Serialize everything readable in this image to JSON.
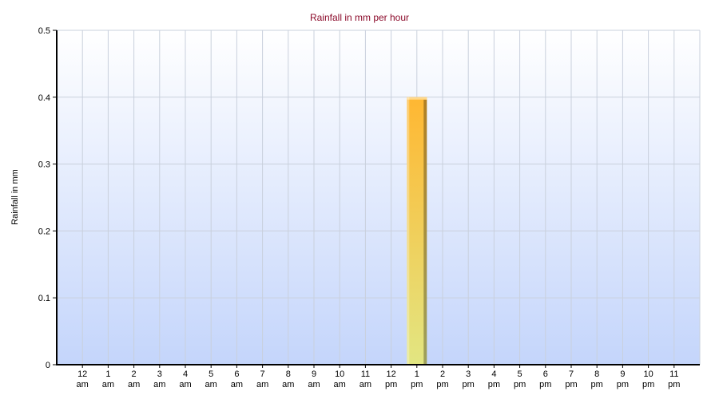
{
  "chart_data": {
    "type": "bar",
    "title": "Rainfall in mm per hour",
    "xlabel": "",
    "ylabel": "Rainfall in mm",
    "categories": [
      [
        "12",
        "am"
      ],
      [
        "1",
        "am"
      ],
      [
        "2",
        "am"
      ],
      [
        "3",
        "am"
      ],
      [
        "4",
        "am"
      ],
      [
        "5",
        "am"
      ],
      [
        "6",
        "am"
      ],
      [
        "7",
        "am"
      ],
      [
        "8",
        "am"
      ],
      [
        "9",
        "am"
      ],
      [
        "10",
        "am"
      ],
      [
        "11",
        "am"
      ],
      [
        "12",
        "pm"
      ],
      [
        "1",
        "pm"
      ],
      [
        "2",
        "pm"
      ],
      [
        "3",
        "pm"
      ],
      [
        "4",
        "pm"
      ],
      [
        "5",
        "pm"
      ],
      [
        "6",
        "pm"
      ],
      [
        "7",
        "pm"
      ],
      [
        "8",
        "pm"
      ],
      [
        "9",
        "pm"
      ],
      [
        "10",
        "pm"
      ],
      [
        "11",
        "pm"
      ]
    ],
    "values": [
      0,
      0,
      0,
      0,
      0,
      0,
      0,
      0,
      0,
      0,
      0,
      0,
      0,
      0.4,
      0,
      0,
      0,
      0,
      0,
      0,
      0,
      0,
      0,
      0
    ],
    "ylim": [
      0,
      0.5
    ],
    "yticks": [
      "0",
      "0.1",
      "0.2",
      "0.3",
      "0.4",
      "0.5"
    ],
    "grid": true,
    "legend": "none",
    "colors": {
      "bar_top": "#ffb732",
      "bar_bottom": "#e2e682",
      "bg_top": "#ffffff",
      "bg_bottom": "#c4d5fb",
      "title": "#8b0a2a"
    }
  }
}
